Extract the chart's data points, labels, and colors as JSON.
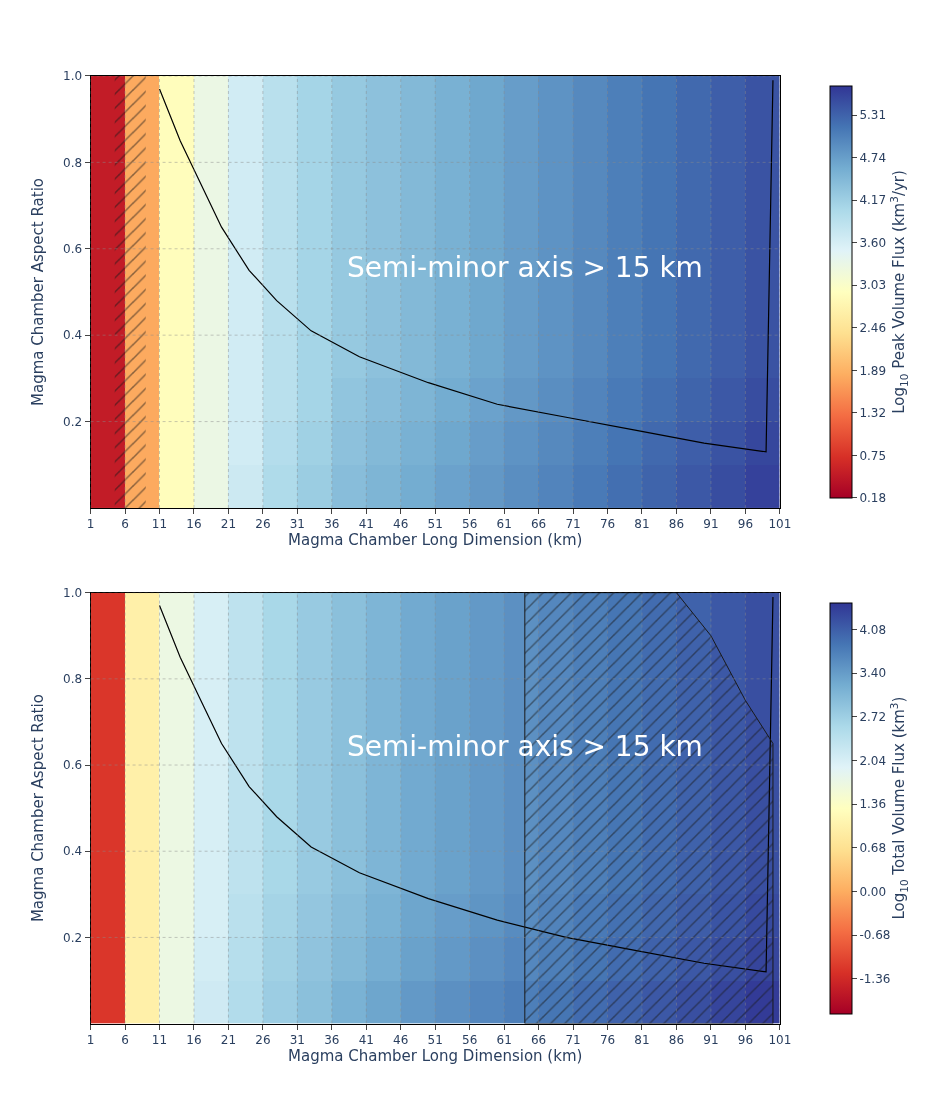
{
  "chart_data": [
    {
      "type": "heatmap",
      "xlabel": "Magma Chamber Long Dimension (km)",
      "ylabel": "Magma Chamber Aspect Ratio",
      "clabel": "Log$_{10}$ Peak Volume Flux (km$^{3}$/yr)",
      "x": [
        3.5,
        8.5,
        13.5,
        18.5,
        23.5,
        28.5,
        33.5,
        38.5,
        43.5,
        48.5,
        53.5,
        58.5,
        63.5,
        68.5,
        73.5,
        78.5,
        83.5,
        88.5,
        93.5,
        98.5
      ],
      "y": [
        0.95,
        0.85,
        0.75,
        0.65,
        0.55,
        0.45,
        0.35,
        0.25,
        0.15,
        0.05
      ],
      "cells": [
        [
          0.5,
          1.8,
          2.9,
          3.3,
          3.65,
          3.9,
          4.1,
          4.25,
          4.35,
          4.45,
          4.55,
          4.65,
          4.75,
          4.85,
          4.95,
          5.05,
          5.15,
          5.25,
          5.35,
          5.45
        ],
        [
          0.5,
          1.8,
          2.9,
          3.3,
          3.65,
          3.9,
          4.1,
          4.25,
          4.35,
          4.45,
          4.55,
          4.65,
          4.75,
          4.85,
          4.95,
          5.05,
          5.15,
          5.25,
          5.35,
          5.45
        ],
        [
          0.5,
          1.8,
          2.9,
          3.3,
          3.65,
          3.9,
          4.1,
          4.25,
          4.35,
          4.45,
          4.55,
          4.65,
          4.75,
          4.85,
          4.95,
          5.05,
          5.15,
          5.25,
          5.35,
          5.45
        ],
        [
          0.5,
          1.8,
          2.9,
          3.3,
          3.65,
          3.9,
          4.1,
          4.25,
          4.35,
          4.45,
          4.55,
          4.65,
          4.75,
          4.85,
          4.95,
          5.05,
          5.15,
          5.25,
          5.35,
          5.45
        ],
        [
          0.5,
          1.8,
          2.9,
          3.3,
          3.65,
          3.9,
          4.1,
          4.25,
          4.35,
          4.45,
          4.55,
          4.65,
          4.75,
          4.85,
          4.95,
          5.05,
          5.15,
          5.25,
          5.35,
          5.45
        ],
        [
          0.5,
          1.8,
          2.9,
          3.3,
          3.65,
          3.9,
          4.1,
          4.25,
          4.35,
          4.45,
          4.55,
          4.65,
          4.75,
          4.85,
          4.95,
          5.05,
          5.15,
          5.25,
          5.35,
          5.45
        ],
        [
          0.5,
          1.8,
          2.9,
          3.3,
          3.65,
          3.9,
          4.1,
          4.25,
          4.35,
          4.45,
          4.55,
          4.65,
          4.75,
          4.85,
          4.95,
          5.05,
          5.15,
          5.25,
          5.35,
          5.45
        ],
        [
          0.5,
          1.8,
          2.9,
          3.3,
          3.65,
          3.9,
          4.1,
          4.3,
          4.4,
          4.5,
          4.6,
          4.7,
          4.8,
          4.9,
          5.0,
          5.1,
          5.2,
          5.3,
          5.4,
          5.5
        ],
        [
          0.5,
          1.8,
          2.9,
          3.3,
          3.65,
          3.95,
          4.15,
          4.35,
          4.45,
          4.55,
          4.65,
          4.75,
          4.85,
          4.95,
          5.05,
          5.15,
          5.25,
          5.35,
          5.45,
          5.55
        ],
        [
          0.5,
          1.8,
          2.9,
          3.3,
          3.7,
          4.0,
          4.2,
          4.4,
          4.5,
          4.6,
          4.7,
          4.8,
          4.9,
          5.0,
          5.1,
          5.2,
          5.3,
          5.4,
          5.5,
          5.6
        ]
      ],
      "clim": [
        0.18,
        5.7
      ],
      "cticks": [
        0.18,
        0.75,
        1.32,
        1.89,
        2.46,
        3.03,
        {
          "value": 3.6,
          "label": "3.60"
        },
        4.17,
        4.74,
        5.31
      ],
      "xlim": [
        1,
        101
      ],
      "xticks": [
        1,
        6,
        11,
        16,
        21,
        26,
        31,
        36,
        41,
        46,
        51,
        56,
        61,
        66,
        71,
        76,
        81,
        86,
        91,
        96,
        101
      ],
      "ylim": [
        0,
        1.0
      ],
      "yticks": [
        0.2,
        0.4,
        0.6,
        0.8,
        {
          "value": 1,
          "label": "1.0"
        }
      ],
      "grid": true,
      "series": [
        {
          "type": "line",
          "color": "#000000",
          "x": [
            11,
            12,
            14,
            17,
            20,
            24,
            28,
            33,
            40,
            50,
            60,
            70,
            80,
            90,
            99,
            100
          ],
          "values": [
            0.97,
            0.93,
            0.85,
            0.75,
            0.65,
            0.55,
            0.48,
            0.41,
            0.35,
            0.29,
            0.24,
            0.21,
            0.18,
            0.15,
            0.13,
            0.99
          ]
        }
      ],
      "bands": [
        {
          "axis": "x",
          "from": 4.5,
          "to": 9,
          "color": "#1a1a1a"
        }
      ],
      "annotations": [
        "Semi-minor axis > 15 km"
      ]
    },
    {
      "type": "heatmap",
      "xlabel": "Magma Chamber Long Dimension (km)",
      "ylabel": "Magma Chamber Aspect Ratio",
      "clabel": "Log$_{10}$ Total Volume Flux (km$^{3}$)",
      "x": [
        3.5,
        8.5,
        13.5,
        18.5,
        23.5,
        28.5,
        33.5,
        38.5,
        43.5,
        48.5,
        53.5,
        58.5,
        63.5,
        68.5,
        73.5,
        78.5,
        83.5,
        88.5,
        93.5,
        98.5
      ],
      "y": [
        0.95,
        0.85,
        0.75,
        0.65,
        0.55,
        0.45,
        0.35,
        0.25,
        0.15,
        0.05
      ],
      "cells": [
        [
          -1.2,
          1.0,
          1.7,
          2.05,
          2.35,
          2.6,
          2.8,
          2.95,
          3.1,
          3.25,
          3.35,
          3.45,
          3.55,
          3.65,
          3.75,
          3.85,
          3.95,
          4.05,
          4.15,
          4.25
        ],
        [
          -1.2,
          1.0,
          1.7,
          2.05,
          2.35,
          2.6,
          2.8,
          2.95,
          3.1,
          3.25,
          3.35,
          3.45,
          3.55,
          3.65,
          3.75,
          3.85,
          3.95,
          4.05,
          4.15,
          4.25
        ],
        [
          -1.2,
          1.0,
          1.7,
          2.05,
          2.35,
          2.6,
          2.8,
          2.95,
          3.1,
          3.25,
          3.35,
          3.45,
          3.55,
          3.65,
          3.75,
          3.85,
          3.95,
          4.05,
          4.15,
          4.25
        ],
        [
          -1.2,
          1.0,
          1.7,
          2.05,
          2.35,
          2.6,
          2.8,
          2.95,
          3.1,
          3.25,
          3.35,
          3.45,
          3.55,
          3.65,
          3.75,
          3.85,
          3.95,
          4.05,
          4.15,
          4.25
        ],
        [
          -1.2,
          1.0,
          1.7,
          2.05,
          2.35,
          2.6,
          2.8,
          2.95,
          3.1,
          3.25,
          3.35,
          3.45,
          3.55,
          3.65,
          3.75,
          3.85,
          3.95,
          4.05,
          4.15,
          4.25
        ],
        [
          -1.2,
          1.0,
          1.7,
          2.05,
          2.35,
          2.6,
          2.8,
          2.95,
          3.1,
          3.25,
          3.35,
          3.45,
          3.55,
          3.65,
          3.75,
          3.85,
          3.95,
          4.05,
          4.15,
          4.25
        ],
        [
          -1.2,
          1.0,
          1.7,
          2.05,
          2.35,
          2.6,
          2.8,
          2.95,
          3.1,
          3.25,
          3.35,
          3.45,
          3.55,
          3.65,
          3.75,
          3.85,
          3.95,
          4.05,
          4.15,
          4.25
        ],
        [
          -1.2,
          1.0,
          1.7,
          2.05,
          2.4,
          2.65,
          2.85,
          3.0,
          3.15,
          3.3,
          3.4,
          3.5,
          3.6,
          3.7,
          3.8,
          3.9,
          4.0,
          4.1,
          4.2,
          4.3
        ],
        [
          -1.2,
          1.0,
          1.7,
          2.1,
          2.45,
          2.7,
          2.9,
          3.05,
          3.2,
          3.35,
          3.45,
          3.55,
          3.65,
          3.75,
          3.85,
          3.95,
          4.05,
          4.15,
          4.25,
          4.35
        ],
        [
          -1.2,
          1.0,
          1.7,
          2.15,
          2.5,
          2.75,
          2.95,
          3.15,
          3.3,
          3.45,
          3.55,
          3.65,
          3.75,
          3.85,
          3.95,
          4.05,
          4.15,
          4.25,
          4.35,
          4.45
        ]
      ],
      "clim": [
        -1.9,
        4.5
      ],
      "cticks": [
        -1.36,
        -0.68,
        {
          "value": 0,
          "label": "0.00"
        },
        0.68,
        1.36,
        2.04,
        2.72,
        {
          "value": 3.4,
          "label": "3.40"
        },
        4.08
      ],
      "xlim": [
        1,
        101
      ],
      "xticks": [
        1,
        6,
        11,
        16,
        21,
        26,
        31,
        36,
        41,
        46,
        51,
        56,
        61,
        66,
        71,
        76,
        81,
        86,
        91,
        96,
        101
      ],
      "ylim": [
        0,
        1.0
      ],
      "yticks": [
        0.2,
        0.4,
        0.6,
        0.8,
        {
          "value": 1,
          "label": "1.0"
        }
      ],
      "grid": true,
      "series": [
        {
          "type": "line",
          "color": "#000000",
          "x": [
            11,
            12,
            14,
            17,
            20,
            24,
            28,
            33,
            40,
            50,
            60,
            70,
            80,
            90,
            99,
            100
          ],
          "values": [
            0.97,
            0.93,
            0.85,
            0.75,
            0.65,
            0.55,
            0.48,
            0.41,
            0.35,
            0.29,
            0.24,
            0.2,
            0.17,
            0.14,
            0.12,
            0.99
          ]
        },
        {
          "type": "area",
          "color": "#1a1a1a",
          "x": [
            64,
            71,
            76,
            81,
            86,
            91,
            96,
            100
          ],
          "values": [
            1.0,
            1.0,
            1.0,
            1.0,
            1.0,
            0.9,
            0.75,
            0.65
          ]
        }
      ],
      "annotations": [
        "Semi-minor axis > 15 km"
      ]
    }
  ]
}
